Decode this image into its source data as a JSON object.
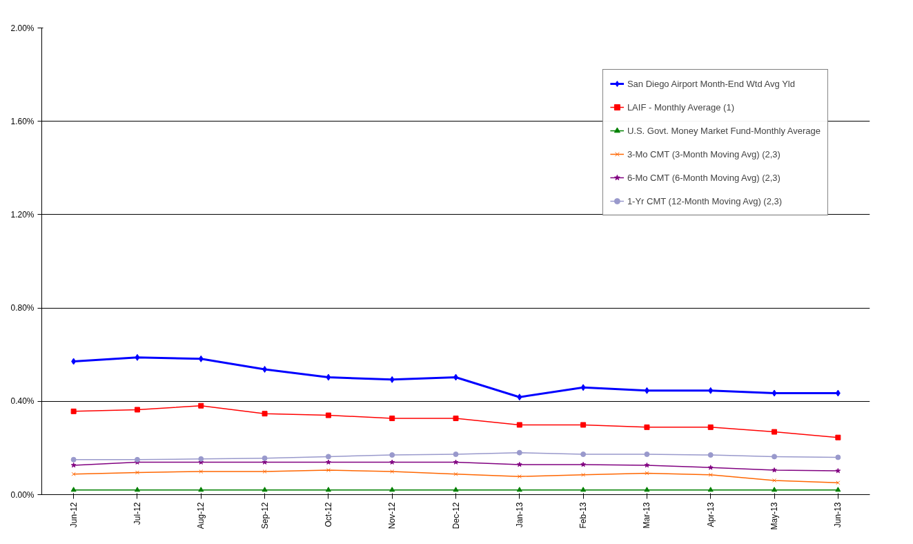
{
  "chart_data": {
    "type": "line",
    "categories": [
      "Jun-12",
      "Jul-12",
      "Aug-12",
      "Sep-12",
      "Oct-12",
      "Nov-12",
      "Dec-12",
      "Jan-13",
      "Feb-13",
      "Mar-13",
      "Apr-13",
      "May-13",
      "Jun-13"
    ],
    "series": [
      {
        "name": "San Diego Airport Month-End Wtd Avg Yld",
        "color": "#0000ff",
        "marker": "diamond",
        "values": [
          0.571,
          0.588,
          0.582,
          0.537,
          0.503,
          0.493,
          0.503,
          0.418,
          0.459,
          0.446,
          0.446,
          0.435,
          0.435
        ]
      },
      {
        "name": "LAIF - Monthly Average (1)",
        "color": "#ff0000",
        "marker": "square",
        "values": [
          0.357,
          0.364,
          0.381,
          0.347,
          0.34,
          0.327,
          0.327,
          0.299,
          0.299,
          0.289,
          0.289,
          0.269,
          0.245
        ]
      },
      {
        "name": "U.S. Govt. Money Market Fund-Monthly Average",
        "color": "#008000",
        "marker": "triangle",
        "values": [
          0.02,
          0.02,
          0.02,
          0.02,
          0.02,
          0.02,
          0.02,
          0.02,
          0.02,
          0.02,
          0.02,
          0.02,
          0.02
        ]
      },
      {
        "name": "3-Mo CMT (3-Month Moving Avg) (2,3)",
        "color": "#ff6600",
        "marker": "cross",
        "values": [
          0.088,
          0.095,
          0.099,
          0.099,
          0.105,
          0.099,
          0.088,
          0.078,
          0.085,
          0.092,
          0.085,
          0.061,
          0.051
        ]
      },
      {
        "name": "6-Mo CMT (6-Month Moving Avg) (2,3)",
        "color": "#800080",
        "marker": "star",
        "values": [
          0.126,
          0.139,
          0.139,
          0.139,
          0.139,
          0.139,
          0.139,
          0.129,
          0.129,
          0.126,
          0.116,
          0.105,
          0.102
        ]
      },
      {
        "name": "1-Yr CMT (12-Month Moving Avg) (2,3)",
        "color": "#9999cc",
        "marker": "circle",
        "values": [
          0.15,
          0.15,
          0.153,
          0.156,
          0.163,
          0.17,
          0.173,
          0.18,
          0.173,
          0.173,
          0.17,
          0.163,
          0.16
        ]
      }
    ],
    "ylim": [
      0,
      2
    ],
    "yticks": [
      {
        "value": 0,
        "label": "0.00%"
      },
      {
        "value": 0.4,
        "label": "0.40%"
      },
      {
        "value": 0.8,
        "label": "0.80%"
      },
      {
        "value": 1.2,
        "label": "1.20%"
      },
      {
        "value": 1.6,
        "label": "1.60%"
      },
      {
        "value": 2,
        "label": "2.00%"
      }
    ],
    "grid": "y",
    "legend": "top right"
  }
}
